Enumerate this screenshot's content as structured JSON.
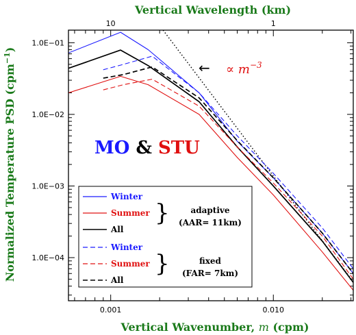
{
  "chart_data": {
    "type": "line",
    "xscale": "log",
    "yscale": "log",
    "xlim": [
      0.00055,
      0.031
    ],
    "ylim": [
      2.5e-05,
      0.15
    ],
    "xlabel": "Vertical Wavenumber, ",
    "xlabel_var": "m",
    "xlabel_unit": " (cpm)",
    "top_xlabel": "Vertical Wavelength (km)",
    "ylabel": "Normalized Temperature PSD (cpm",
    "ylabel_sup": "−1",
    "ylabel_end": ")",
    "x_ticks": [
      {
        "value": 0.001,
        "label": "0.001"
      },
      {
        "value": 0.01,
        "label": "0.010"
      }
    ],
    "top_ticks": [
      {
        "value": 0.001,
        "label": "10"
      },
      {
        "value": 0.01,
        "label": "1"
      }
    ],
    "y_ticks": [
      {
        "value": 0.1,
        "label": "1.0E−01"
      },
      {
        "value": 0.01,
        "label": "1.0E−02"
      },
      {
        "value": 0.001,
        "label": "1.0E−03"
      },
      {
        "value": 0.0001,
        "label": "1.0E−04"
      }
    ],
    "title_parts": {
      "mo": "MO",
      "amp": " & ",
      "stu": "STU"
    },
    "annotation": {
      "arrow": "←",
      "prefix": "∝ ",
      "var": "m",
      "exp": "−3"
    },
    "series": [
      {
        "name": "Winter",
        "group": "adaptive",
        "color": "#1a1aff",
        "dash": "solid",
        "x": [
          0.00055,
          0.00115,
          0.0017,
          0.0035,
          0.006,
          0.01,
          0.02,
          0.031
        ],
        "y": [
          0.072,
          0.14,
          0.08,
          0.02,
          0.0042,
          0.0013,
          0.00022,
          6e-05
        ]
      },
      {
        "name": "Summer",
        "group": "adaptive",
        "color": "#e01010",
        "dash": "solid",
        "x": [
          0.00055,
          0.00115,
          0.0017,
          0.0035,
          0.006,
          0.01,
          0.02,
          0.031
        ],
        "y": [
          0.02,
          0.034,
          0.026,
          0.01,
          0.0025,
          0.00075,
          0.00012,
          3.5e-05
        ]
      },
      {
        "name": "All",
        "group": "adaptive",
        "color": "#000000",
        "dash": "solid",
        "x": [
          0.00055,
          0.00115,
          0.0017,
          0.0035,
          0.006,
          0.01,
          0.02,
          0.031
        ],
        "y": [
          0.044,
          0.079,
          0.048,
          0.015,
          0.0035,
          0.001,
          0.00017,
          4.5e-05
        ]
      },
      {
        "name": "Winter",
        "group": "fixed",
        "color": "#1a1aff",
        "dash": "dashed",
        "x": [
          0.0009,
          0.0012,
          0.0018,
          0.0035,
          0.006,
          0.01,
          0.02,
          0.031
        ],
        "y": [
          0.042,
          0.05,
          0.065,
          0.02,
          0.005,
          0.0015,
          0.00026,
          7e-05
        ]
      },
      {
        "name": "Summer",
        "group": "fixed",
        "color": "#e01010",
        "dash": "dashed",
        "x": [
          0.0009,
          0.0012,
          0.0018,
          0.0035,
          0.006,
          0.01,
          0.02,
          0.031
        ],
        "y": [
          0.022,
          0.026,
          0.031,
          0.013,
          0.0035,
          0.0011,
          0.0002,
          5e-05
        ]
      },
      {
        "name": "All",
        "group": "fixed",
        "color": "#000000",
        "dash": "dashed",
        "x": [
          0.0009,
          0.0012,
          0.0018,
          0.0035,
          0.006,
          0.01,
          0.02,
          0.031
        ],
        "y": [
          0.032,
          0.036,
          0.046,
          0.017,
          0.0043,
          0.0013,
          0.00022,
          6e-05
        ]
      }
    ],
    "reference_line": {
      "name": "m^-3",
      "color": "#000000",
      "dash": "dotted",
      "x": [
        0.0021,
        0.031
      ],
      "y": [
        0.15,
        4.6e-05
      ]
    },
    "legend": {
      "placement": "bottom-left",
      "groups": [
        {
          "label": "adaptive",
          "sublabel": "(AAR= 11km)",
          "entries": [
            {
              "label": "Winter",
              "color": "#1a1aff",
              "dash": "solid"
            },
            {
              "label": "Summer",
              "color": "#e01010",
              "dash": "solid"
            },
            {
              "label": "All",
              "color": "#000000",
              "dash": "solid"
            }
          ]
        },
        {
          "label": "fixed",
          "sublabel": "(FAR= 7km)",
          "entries": [
            {
              "label": "Winter",
              "color": "#1a1aff",
              "dash": "dashed"
            },
            {
              "label": "Summer",
              "color": "#e01010",
              "dash": "dashed"
            },
            {
              "label": "All",
              "color": "#000000",
              "dash": "dashed"
            }
          ]
        }
      ]
    },
    "colors": {
      "axis_title": "#1a7a1a",
      "mo": "#1a1aff",
      "stu": "#e01010",
      "annotation": "#e01010"
    }
  }
}
